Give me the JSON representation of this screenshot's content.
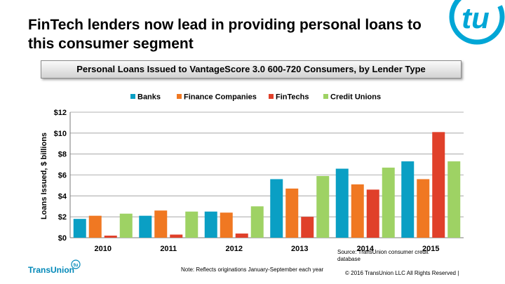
{
  "slide": {
    "title": "FinTech lenders now lead in providing personal loans to this consumer segment",
    "subtitle": "Personal Loans Issued to VantageScore 3.0 600-720 Consumers, by Lender Type",
    "note": "Note: Reflects originations January-September each year",
    "source": "Source: TransUnion consumer credit database",
    "copyright": "© 2016 TransUnion LLC All Rights Reserved  |",
    "brand": "TransUnion",
    "logo_text": "tu",
    "brand_badge_text": "tu",
    "colors": {
      "brand": "#0088b8",
      "subtitle_bg": "#e0e0e0"
    }
  },
  "chart_data": {
    "type": "bar",
    "categories": [
      "2010",
      "2011",
      "2012",
      "2013",
      "2014",
      "2015"
    ],
    "series": [
      {
        "name": "Banks",
        "color": "#0a9fc4",
        "values": [
          1.8,
          2.1,
          2.5,
          5.6,
          6.6,
          7.3
        ]
      },
      {
        "name": "Finance Companies",
        "color": "#f07822",
        "values": [
          2.1,
          2.6,
          2.4,
          4.7,
          5.1,
          5.6
        ]
      },
      {
        "name": "FinTechs",
        "color": "#e0402a",
        "values": [
          0.2,
          0.3,
          0.4,
          2.0,
          4.6,
          10.1
        ]
      },
      {
        "name": "Credit Unions",
        "color": "#9ed264",
        "values": [
          2.3,
          2.5,
          3.0,
          5.9,
          6.7,
          7.3
        ]
      }
    ],
    "ylabel": "Loans Issued, $ billions",
    "xlabel": "",
    "ylim": [
      0,
      12
    ],
    "yticks": [
      "$0",
      "$2",
      "$4",
      "$6",
      "$8",
      "$10",
      "$12"
    ],
    "grid": true,
    "legend": "top"
  }
}
